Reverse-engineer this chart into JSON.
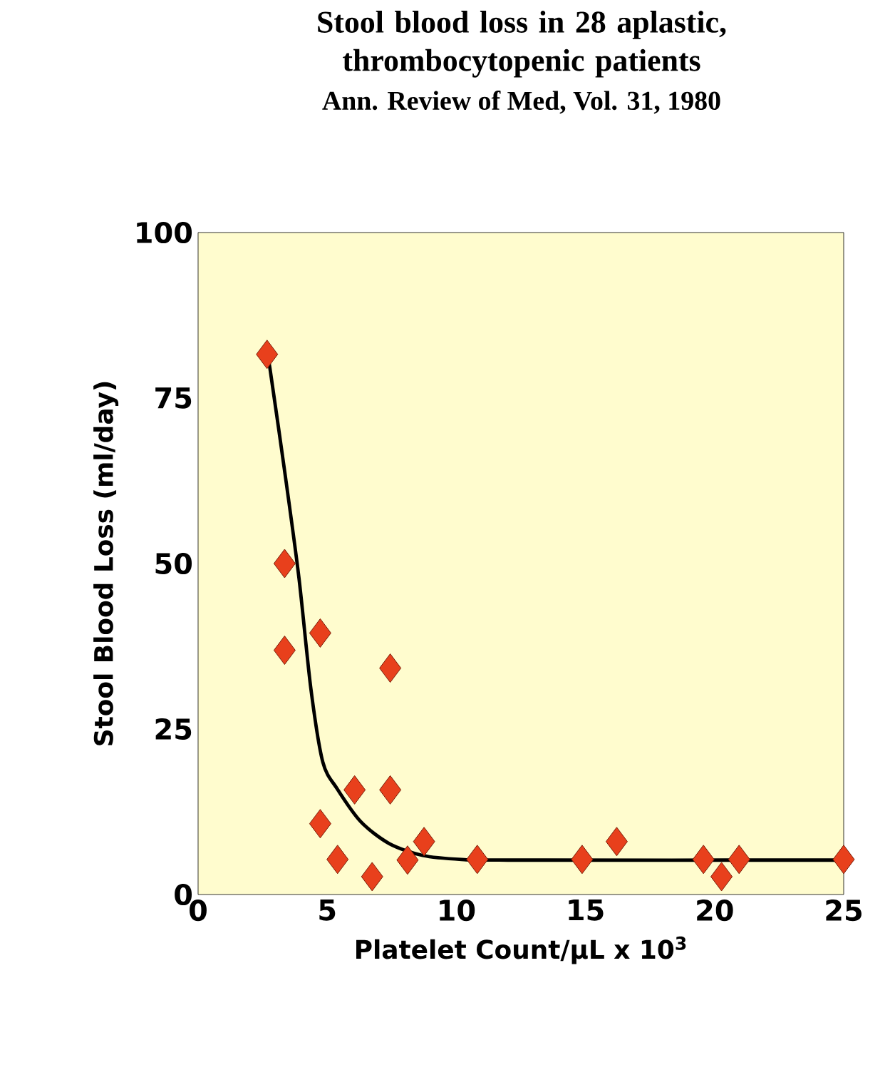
{
  "chart_data": {
    "type": "scatter",
    "title": "Stool blood loss in 28 aplastic, thrombocytopenic patients",
    "annotations": [
      "Ann. Review of Med, Vol. 31, 1980"
    ],
    "xlabel": "Platelet Count/µL x 10$^{3}$",
    "ylabel": "Stool Blood Loss (ml/day)",
    "xlim": [
      0,
      25
    ],
    "ylim": [
      0,
      100
    ],
    "xticks": [
      0,
      5,
      10,
      15,
      20,
      25
    ],
    "yticks": [
      0,
      25,
      50,
      75,
      100
    ],
    "grid": false,
    "series": [
      {
        "type": "line",
        "color": "#000000",
        "marker": "none",
        "line_style": "solid",
        "x": [
          2.75,
          2.8,
          3.35,
          3.9,
          4.37,
          4.83,
          5.38,
          6.3,
          7.4,
          8.7,
          10.2,
          12,
          25
        ],
        "values": [
          80,
          79,
          64,
          48,
          31,
          20,
          16,
          11,
          7.7,
          5.9,
          5.3,
          5.2,
          5.2
        ]
      },
      {
        "color": "#e8401c",
        "marker": "diamond",
        "x": [
          2.67,
          3.35,
          3.35,
          4.73,
          7.44,
          6.06,
          7.44,
          4.73,
          5.4,
          6.74,
          8.11,
          8.75,
          10.81,
          14.87,
          16.21,
          19.57,
          20.27,
          20.95,
          25
        ],
        "values": [
          81.6,
          50,
          36.9,
          39.5,
          34.2,
          15.8,
          15.8,
          10.7,
          5.3,
          2.7,
          5.2,
          8,
          5.3,
          5.3,
          8,
          5.3,
          2.7,
          5.3,
          5.3
        ]
      }
    ]
  }
}
